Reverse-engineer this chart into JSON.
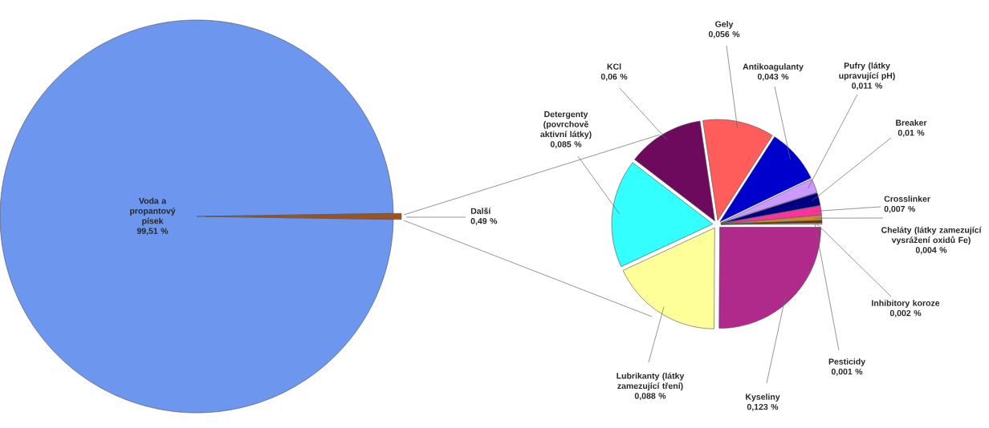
{
  "chart_data": [
    {
      "type": "pie",
      "categories": [
        "Voda a propantový písek",
        "Další"
      ],
      "values": [
        99.51,
        0.49
      ],
      "value_labels": [
        "99,51 %",
        "0,49 %"
      ],
      "colors": [
        "#6d96ee",
        "#a0521d"
      ]
    },
    {
      "type": "pie",
      "categories": [
        "Kyseliny",
        "Lubrikanty (látky zamezující tření)",
        "Detergenty (povrchově aktivní látky)",
        "KCl",
        "Gely",
        "Antikoagulanty",
        "Pufry (látky upravující pH)",
        "Breaker",
        "Crosslinker",
        "Cheláty (látky zamezující vysrážení oxidů Fe)",
        "Inhibitory koroze",
        "Pesticidy"
      ],
      "values": [
        0.123,
        0.088,
        0.085,
        0.06,
        0.056,
        0.043,
        0.011,
        0.01,
        0.007,
        0.004,
        0.002,
        0.001
      ],
      "value_labels": [
        "0,123 %",
        "0,088 %",
        "0,085 %",
        "0,06 %",
        "0,056 %",
        "0,043 %",
        "0,011 %",
        "0,01 %",
        "0,007 %",
        "0,004 %",
        "0,002 %",
        "0,001 %"
      ],
      "colors": [
        "#b02a8c",
        "#ffff99",
        "#33ffff",
        "#6e0a5e",
        "#ff5c5c",
        "#0000cc",
        "#cc99ff",
        "#000080",
        "#ff3399",
        "#cc8833",
        "#663300",
        "#ffcc66"
      ]
    }
  ]
}
